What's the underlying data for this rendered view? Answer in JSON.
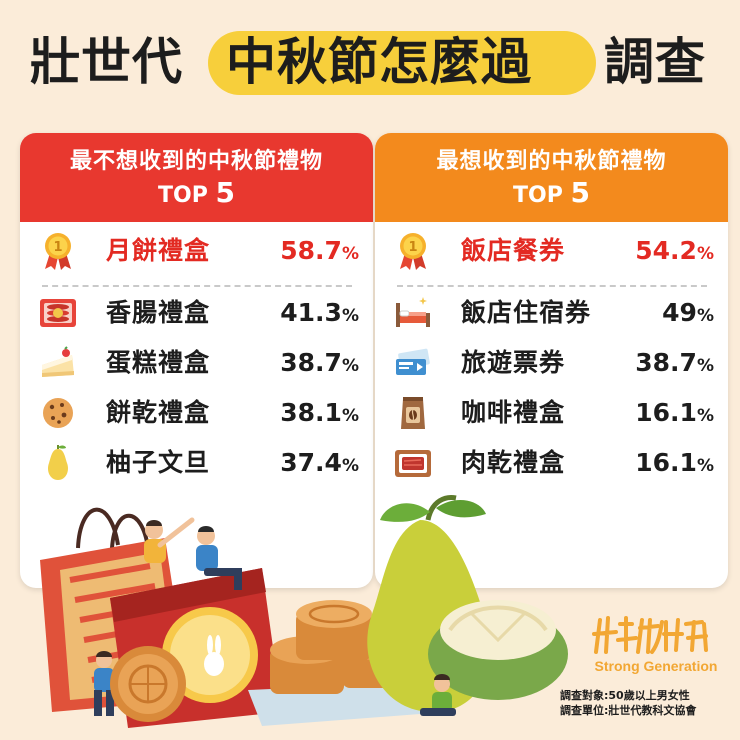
{
  "title": {
    "part1": "壯世代",
    "part2": "中秋節怎麼過",
    "part3": "調查"
  },
  "left_card": {
    "heading": "最不想收到的中秋節禮物",
    "top_label": "TOP",
    "top_num": "5",
    "items": [
      {
        "name": "月餅禮盒",
        "value": "58.7",
        "unit": "%",
        "icon": "medal-icon"
      },
      {
        "name": "香腸禮盒",
        "value": "41.3",
        "unit": "%",
        "icon": "sausage-box-icon"
      },
      {
        "name": "蛋糕禮盒",
        "value": "38.7",
        "unit": "%",
        "icon": "cake-slice-icon"
      },
      {
        "name": "餅乾禮盒",
        "value": "38.1",
        "unit": "%",
        "icon": "cookie-icon"
      },
      {
        "name": "柚子文旦",
        "value": "37.4",
        "unit": "%",
        "icon": "pomelo-icon"
      }
    ]
  },
  "right_card": {
    "heading": "最想收到的中秋節禮物",
    "top_label": "TOP",
    "top_num": "5",
    "items": [
      {
        "name": "飯店餐券",
        "value": "54.2",
        "unit": "%",
        "icon": "medal-icon"
      },
      {
        "name": "飯店住宿券",
        "value": "49",
        "unit": "%",
        "icon": "hotel-bed-icon"
      },
      {
        "name": "旅遊票券",
        "value": "38.7",
        "unit": "%",
        "icon": "travel-ticket-icon"
      },
      {
        "name": "咖啡禮盒",
        "value": "16.1",
        "unit": "%",
        "icon": "coffee-bag-icon"
      },
      {
        "name": "肉乾禮盒",
        "value": "16.1",
        "unit": "%",
        "icon": "jerky-box-icon"
      }
    ]
  },
  "brand": {
    "mark": "壯世代",
    "english": "Strong Generation"
  },
  "notes": {
    "subject": "調查對象:50歲以上男女性",
    "unit": "調查單位:壯世代教科文協會"
  },
  "colors": {
    "background": "#fbecd9",
    "left_header": "#e8382f",
    "right_header": "#f38a1d",
    "highlight": "#f7cf3b",
    "top_text": "#e32a22",
    "brand": "#f2a733"
  },
  "chart_data": [
    {
      "type": "table",
      "title": "最不想收到的中秋節禮物 TOP 5",
      "categories": [
        "月餅禮盒",
        "香腸禮盒",
        "蛋糕禮盒",
        "餅乾禮盒",
        "柚子文旦"
      ],
      "values": [
        58.7,
        41.3,
        38.7,
        38.1,
        37.4
      ],
      "unit": "%"
    },
    {
      "type": "table",
      "title": "最想收到的中秋節禮物 TOP 5",
      "categories": [
        "飯店餐券",
        "飯店住宿券",
        "旅遊票券",
        "咖啡禮盒",
        "肉乾禮盒"
      ],
      "values": [
        54.2,
        49,
        38.7,
        16.1,
        16.1
      ],
      "unit": "%"
    }
  ]
}
